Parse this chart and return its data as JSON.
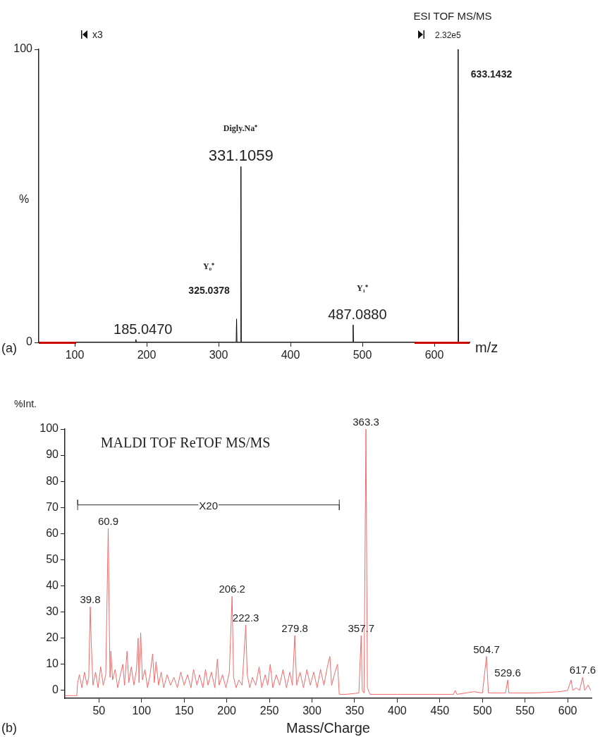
{
  "chart_data": [
    {
      "type": "line",
      "title": "ESI TOF MS/MS",
      "ylabel": "%",
      "xlabel": "m/z",
      "xlim": [
        50,
        649
      ],
      "xticks": [
        100,
        200,
        300,
        400,
        500,
        600
      ],
      "ylim": [
        0,
        100
      ],
      "yticks": [
        0,
        100
      ],
      "grid": false,
      "legend": false,
      "series": [
        {
          "color": "#000000",
          "x": [
            50,
            184.5,
            185.047,
            185.6,
            324.5,
            325.0378,
            325.6,
            330.6,
            331.1059,
            331.6,
            486.6,
            487.088,
            487.6,
            632.6,
            633.1432,
            633.7,
            649
          ],
          "values": [
            0,
            0,
            1,
            0,
            0,
            8,
            0,
            0,
            60,
            0,
            0,
            6,
            0,
            0,
            100,
            0,
            0
          ]
        }
      ],
      "annotations": [
        "(a)",
        "2.32e5",
        {
          "text": "633.1432",
          "x": 633.1432,
          "y": 100
        },
        {
          "text": "331.1059",
          "x": 331.1059,
          "y": 60
        },
        "Digly.Na⁺",
        {
          "text": "325.0378",
          "x": 325.0378,
          "y": 8
        },
        "Y₀⁺",
        {
          "text": "487.0880",
          "x": 487.088,
          "y": 6
        },
        "Y₁⁺",
        {
          "text": "185.0470",
          "x": 185.047,
          "y": 1
        },
        "x3"
      ]
    },
    {
      "type": "line",
      "title": "MALDI TOF ReTOF MS/MS",
      "ylabel": "%Int.",
      "xlabel": "Mass/Charge",
      "xlim": [
        10,
        628
      ],
      "xticks": [
        50,
        100,
        150,
        200,
        250,
        300,
        350,
        400,
        450,
        500,
        550,
        600
      ],
      "ylim": [
        -3,
        100
      ],
      "yticks": [
        0,
        10,
        20,
        30,
        40,
        50,
        60,
        70,
        80,
        90,
        100
      ],
      "grid": false,
      "legend": false,
      "series": [
        {
          "color": "#f26b6b",
          "x": [
            10,
            24,
            25,
            27,
            30,
            33,
            36,
            38,
            39.8,
            41,
            43,
            46,
            49,
            52,
            55,
            58,
            60.9,
            62,
            63,
            64,
            66,
            69,
            72,
            75,
            78,
            80,
            83,
            85,
            88,
            91,
            94,
            96,
            97,
            99,
            101,
            104,
            107,
            110,
            113,
            115,
            117,
            120,
            123,
            126,
            130,
            134,
            138,
            142,
            146,
            150,
            154,
            158,
            161,
            165,
            168,
            172,
            175,
            178,
            182,
            186,
            189,
            191,
            195,
            199,
            203,
            206.2,
            208,
            211,
            214,
            218,
            222.3,
            224,
            227,
            230,
            234,
            238,
            241,
            245,
            248,
            251,
            254,
            258,
            262,
            266,
            270,
            274,
            277,
            279.8,
            282,
            286,
            290,
            294,
            298,
            302,
            306,
            310,
            314,
            318,
            321,
            323,
            327,
            330,
            332,
            340,
            355,
            357.7,
            359,
            361,
            363.3,
            365,
            368,
            400,
            440,
            466,
            468,
            470,
            490,
            500,
            504.7,
            507,
            527,
            529.6,
            531,
            560,
            590,
            600,
            604,
            606,
            610,
            614,
            617.6,
            620,
            624,
            627
          ],
          "values": [
            -2,
            -2,
            3,
            6,
            1,
            7,
            2,
            5,
            32,
            18,
            2,
            7,
            1,
            9,
            2,
            6,
            62,
            28,
            5,
            15,
            4,
            8,
            1,
            6,
            10,
            2,
            15,
            3,
            9,
            2,
            8,
            20,
            3,
            22,
            4,
            8,
            1,
            6,
            14,
            3,
            11,
            2,
            7,
            1,
            6,
            2,
            5,
            1,
            7,
            2,
            6,
            1,
            8,
            2,
            6,
            1,
            8,
            2,
            7,
            1,
            12,
            2,
            6,
            1,
            7,
            36,
            5,
            1,
            4,
            2,
            25,
            6,
            1,
            5,
            2,
            9,
            1,
            6,
            2,
            10,
            1,
            6,
            2,
            8,
            1,
            7,
            2,
            21,
            2,
            7,
            1,
            8,
            2,
            7,
            1,
            8,
            2,
            9,
            13,
            2,
            7,
            10,
            -1.5,
            -1.5,
            -1,
            21,
            0,
            -1,
            100,
            1,
            -1.5,
            -1.5,
            -1.5,
            -1.5,
            0,
            -1.5,
            -0.5,
            -1,
            13,
            -1,
            -1,
            4,
            -1,
            -1,
            -0.5,
            0,
            4,
            0,
            1,
            0,
            5,
            0,
            2,
            0
          ]
        },
        {
          "type": "line",
          "color": "#333333",
          "x": [
            25,
            25,
            25,
            332,
            332,
            332
          ],
          "values": [
            69,
            73,
            71,
            71,
            69,
            73
          ]
        }
      ],
      "annotations": [
        "(b)",
        {
          "text": "X20",
          "x": 178.5,
          "y": 71
        },
        {
          "text": "39.8",
          "x": 39.8,
          "y": 32
        },
        {
          "text": "60.9",
          "x": 60.9,
          "y": 62
        },
        {
          "text": "206.2",
          "x": 206.2,
          "y": 36
        },
        {
          "text": "222.3",
          "x": 222.3,
          "y": 25
        },
        {
          "text": "279.8",
          "x": 279.8,
          "y": 21
        },
        {
          "text": "357.7",
          "x": 357.7,
          "y": 21
        },
        {
          "text": "363.3",
          "x": 363.3,
          "y": 100
        },
        {
          "text": "504.7",
          "x": 504.7,
          "y": 13
        },
        {
          "text": "529.6",
          "x": 529.6,
          "y": 4
        },
        {
          "text": "617.6",
          "x": 617.6,
          "y": 5
        }
      ]
    }
  ]
}
